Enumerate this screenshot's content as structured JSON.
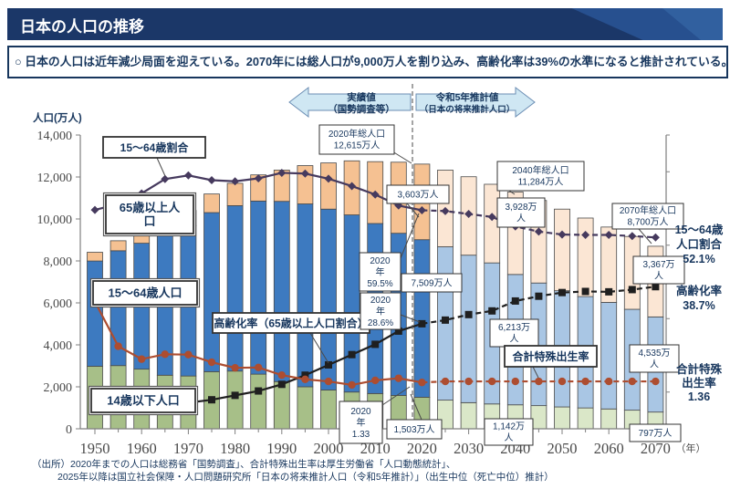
{
  "header": {
    "title": "日本の人口の推移"
  },
  "summary": {
    "text": "○ 日本の人口は近年減少局面を迎えている。2070年には総人口が9,000万人を割り込み、高齢化率は39%の水準になると推計されている。"
  },
  "source": {
    "line1": "（出所）2020年までの人口は総務省「国勢調査」、合計特殊出生率は厚生労働省「人口動態統計」、",
    "line2": "2025年以降は国立社会保障・人口問題研究所「日本の将来推計人口（令和5年推計）」（出生中位（死亡中位）推計）"
  },
  "colors": {
    "navy": "#17365d",
    "axis_text": "#4a4a4a",
    "bar_border": "#4a4a4a",
    "connector": "#4a4a4a",
    "arrow_fill": "#cfe7f3",
    "arrow_border": "#6b8db3"
  },
  "chart_data": {
    "type": "bar",
    "subtype": "stacked-bars-with-overlay-lines",
    "title": "日本の人口の推移",
    "ylabel": "人口(万人)",
    "x_unit_label": "（年）",
    "ylim": [
      0,
      14000
    ],
    "y_ticks": [
      0,
      2000,
      4000,
      6000,
      8000,
      10000,
      12000,
      14000
    ],
    "grid": false,
    "categories": [
      1950,
      1955,
      1960,
      1965,
      1970,
      1975,
      1980,
      1985,
      1990,
      1995,
      2000,
      2005,
      2010,
      2015,
      2020,
      2025,
      2030,
      2035,
      2040,
      2045,
      2050,
      2055,
      2060,
      2065,
      2070
    ],
    "decade_labels": [
      1950,
      1960,
      1970,
      1980,
      1990,
      2000,
      2010,
      2020,
      2030,
      2040,
      2050,
      2060,
      2070
    ],
    "actual_through_index": 14,
    "series": [
      {
        "name": "14歳以下人口",
        "color_actual": "#a7bf88",
        "color_estimate": "#dae7c8",
        "values": [
          2979,
          3012,
          2843,
          2553,
          2515,
          2722,
          2751,
          2603,
          2249,
          2001,
          1847,
          1752,
          1680,
          1589,
          1503,
          1365,
          1246,
          1184,
          1142,
          1103,
          1041,
          994,
          946,
          886,
          797
        ]
      },
      {
        "name": "15～64歳人口",
        "color_actual": "#3d7ac0",
        "color_estimate": "#a9c6e4",
        "values": [
          5017,
          5473,
          6000,
          6693,
          7157,
          7581,
          7883,
          8251,
          8590,
          8716,
          8622,
          8442,
          8103,
          7729,
          7509,
          7310,
          7028,
          6722,
          6213,
          5845,
          5540,
          5306,
          5078,
          4809,
          4535
        ]
      },
      {
        "name": "65歳以上人口",
        "color_actual": "#f5c192",
        "color_estimate": "#fbe6d4",
        "values": [
          416,
          476,
          535,
          624,
          733,
          887,
          1065,
          1247,
          1489,
          1826,
          2201,
          2576,
          2948,
          3387,
          3603,
          3653,
          3738,
          3747,
          3928,
          3932,
          3888,
          3744,
          3591,
          3470,
          3367
        ]
      }
    ],
    "lines": [
      {
        "name": "15～64歳割合",
        "unit": "%",
        "axis_scale": 175,
        "color": "#463a5e",
        "marker": "diamond",
        "values": [
          59.6,
          61.2,
          64.1,
          68.0,
          69.0,
          67.7,
          67.4,
          68.2,
          69.7,
          69.5,
          68.1,
          66.1,
          63.8,
          60.8,
          59.5,
          59.3,
          58.5,
          57.7,
          55.1,
          53.7,
          52.9,
          52.8,
          52.8,
          52.5,
          52.1
        ]
      },
      {
        "name": "高齢化率",
        "unit": "%",
        "axis_scale": 175,
        "color": "#1f1f1f",
        "marker": "square",
        "values": [
          4.9,
          5.3,
          5.7,
          6.3,
          7.1,
          7.9,
          9.1,
          10.3,
          12.1,
          14.6,
          17.4,
          20.2,
          23.0,
          26.6,
          28.6,
          29.6,
          31.1,
          32.1,
          34.8,
          36.1,
          37.1,
          37.4,
          37.3,
          37.9,
          38.7
        ]
      },
      {
        "name": "合計特殊出生率",
        "unit": "",
        "axis_scale": 1660,
        "color": "#ad4d30",
        "marker": "circle",
        "values": [
          3.65,
          2.37,
          2.0,
          2.14,
          2.13,
          1.91,
          1.75,
          1.76,
          1.54,
          1.42,
          1.36,
          1.26,
          1.39,
          1.45,
          1.33,
          1.36,
          1.36,
          1.36,
          1.36,
          1.36,
          1.36,
          1.36,
          1.36,
          1.36,
          1.36
        ]
      }
    ],
    "arrows": {
      "left": [
        "実績値",
        "（国勢調査等）"
      ],
      "right": [
        "令和5年推計値",
        "（日本の将来推計人口）"
      ]
    },
    "annotations": {
      "label_1564_ratio": [
        "15～64歳割合"
      ],
      "label_65plus": [
        "65歳以上人",
        "口"
      ],
      "label_1564_pop": [
        "15～64歳人口"
      ],
      "label_u14": [
        "14歳以下人口"
      ],
      "label_aging": [
        "高齢化率（65歳以上人口割合）"
      ],
      "label_fert": [
        "合計特殊出生率"
      ],
      "total2020": [
        "2020年総人口",
        "12,615万人"
      ],
      "o2020": [
        "3,603万人"
      ],
      "ratio2020": [
        "2020",
        "年",
        "59.5%"
      ],
      "aging2020": [
        "2020",
        "年",
        "28.6%"
      ],
      "m2020": [
        "7,509万人"
      ],
      "u2020": [
        "1,503万人"
      ],
      "fert2020": [
        "2020",
        "年",
        "1.33"
      ],
      "total2040": [
        "2040年総人口",
        "11,284万人"
      ],
      "o2040": [
        "3,928万",
        "人"
      ],
      "m2040": [
        "6,213万",
        "人"
      ],
      "u2040": [
        "1,142万",
        "人"
      ],
      "total2070": [
        "2070年総人口",
        "8,700万人"
      ],
      "o2070": [
        "3,367万",
        "人"
      ],
      "m2070": [
        "4,535万",
        "人"
      ],
      "u2070": [
        "797万人"
      ]
    },
    "side_labels": [
      {
        "id": "side-1564-ratio",
        "lines": [
          "15～64歳",
          "人口割合",
          "52.1%"
        ]
      },
      {
        "id": "side-aging",
        "lines": [
          "高齢化率",
          "38.7%"
        ]
      },
      {
        "id": "side-fert",
        "lines": [
          "合計特殊",
          "出生率",
          "1.36"
        ]
      }
    ]
  }
}
